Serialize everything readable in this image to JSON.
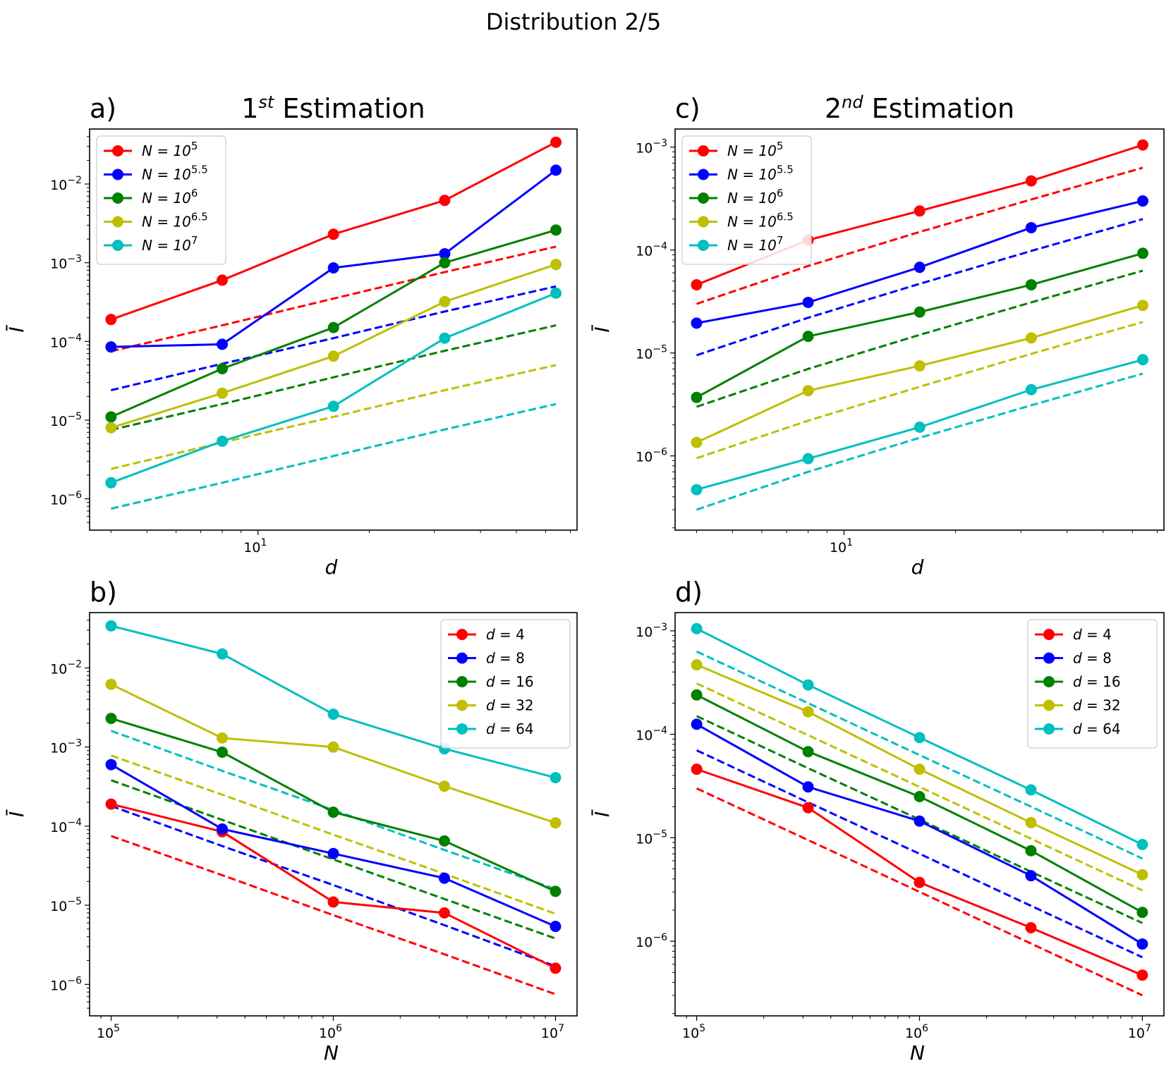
{
  "suptitle": "Distribution 2/5",
  "colors": {
    "red": "#ff0000",
    "blue": "#0000ff",
    "green": "#008000",
    "yellow": "#bfbf00",
    "cyan": "#00bfbf"
  },
  "chart_data": [
    {
      "id": "a",
      "panel_label": "a)",
      "title_prefix": "1",
      "title_sup": "st",
      "title_suffix": " Estimation",
      "type": "line",
      "xscale": "log",
      "yscale": "log",
      "xlabel": "d",
      "ylabel": "Ī",
      "xlim": [
        3.5,
        73
      ],
      "ylim": [
        4e-07,
        0.05
      ],
      "x": [
        4,
        8,
        16,
        32,
        64
      ],
      "x_ticks": [
        {
          "v": 10,
          "base": "10",
          "exp": "1"
        }
      ],
      "y_ticks": [
        {
          "v": 1e-06,
          "base": "10",
          "exp": "−6"
        },
        {
          "v": 1e-05,
          "base": "10",
          "exp": "−5"
        },
        {
          "v": 0.0001,
          "base": "10",
          "exp": "−4"
        },
        {
          "v": 0.001,
          "base": "10",
          "exp": "−3"
        },
        {
          "v": 0.01,
          "base": "10",
          "exp": "−2"
        }
      ],
      "legend_position": "upper-left",
      "series": [
        {
          "name": "N = 10^5",
          "lhs": "N = 10",
          "exp": "5",
          "color": "red",
          "values": [
            0.00019,
            0.0006,
            0.0023,
            0.0062,
            0.034
          ],
          "fit": [
            7.5e-05,
            0.00016,
            0.00035,
            0.00076,
            0.0016
          ]
        },
        {
          "name": "N = 10^5.5",
          "lhs": "N = 10",
          "exp": "5.5",
          "color": "blue",
          "values": [
            8.5e-05,
            9.2e-05,
            0.00086,
            0.0013,
            0.015
          ],
          "fit": [
            2.4e-05,
            5.2e-05,
            0.00011,
            0.00024,
            0.0005
          ]
        },
        {
          "name": "N = 10^6",
          "lhs": "N = 10",
          "exp": "6",
          "color": "green",
          "values": [
            1.1e-05,
            4.5e-05,
            0.00015,
            0.001,
            0.0026
          ],
          "fit": [
            7.5e-06,
            1.6e-05,
            3.5e-05,
            7.6e-05,
            0.00016
          ]
        },
        {
          "name": "N = 10^6.5",
          "lhs": "N = 10",
          "exp": "6.5",
          "color": "yellow",
          "values": [
            8e-06,
            2.2e-05,
            6.5e-05,
            0.00032,
            0.00095
          ],
          "fit": [
            2.4e-06,
            5.2e-06,
            1.1e-05,
            2.4e-05,
            5e-05
          ]
        },
        {
          "name": "N = 10^7",
          "lhs": "N = 10",
          "exp": "7",
          "color": "cyan",
          "values": [
            1.6e-06,
            5.4e-06,
            1.5e-05,
            0.00011,
            0.00041
          ],
          "fit": [
            7.5e-07,
            1.6e-06,
            3.5e-06,
            7.6e-06,
            1.6e-05
          ]
        }
      ]
    },
    {
      "id": "b",
      "panel_label": "b)",
      "type": "line",
      "xscale": "log",
      "yscale": "log",
      "xlabel": "N",
      "ylabel": "Ī",
      "xlim": [
        80000,
        12500000
      ],
      "ylim": [
        4e-07,
        0.05
      ],
      "x": [
        100000,
        316228,
        1000000,
        3162278,
        10000000
      ],
      "x_ticks": [
        {
          "v": 100000,
          "base": "10",
          "exp": "5"
        },
        {
          "v": 1000000,
          "base": "10",
          "exp": "6"
        },
        {
          "v": 10000000,
          "base": "10",
          "exp": "7"
        }
      ],
      "y_ticks": [
        {
          "v": 1e-06,
          "base": "10",
          "exp": "−6"
        },
        {
          "v": 1e-05,
          "base": "10",
          "exp": "−5"
        },
        {
          "v": 0.0001,
          "base": "10",
          "exp": "−4"
        },
        {
          "v": 0.001,
          "base": "10",
          "exp": "−3"
        },
        {
          "v": 0.01,
          "base": "10",
          "exp": "−2"
        }
      ],
      "legend_position": "upper-right",
      "series": [
        {
          "name": "d = 4",
          "lhs": "d",
          "rhs": " = 4",
          "color": "red",
          "values": [
            0.00019,
            8.5e-05,
            1.1e-05,
            8e-06,
            1.6e-06
          ],
          "fit": [
            7.5e-05,
            2.4e-05,
            7.5e-06,
            2.4e-06,
            7.5e-07
          ]
        },
        {
          "name": "d = 8",
          "lhs": "d",
          "rhs": " = 8",
          "color": "blue",
          "values": [
            0.0006,
            9.2e-05,
            4.5e-05,
            2.2e-05,
            5.4e-06
          ],
          "fit": [
            0.00018,
            5.6e-05,
            1.8e-05,
            5.6e-06,
            1.7e-06
          ]
        },
        {
          "name": "d = 16",
          "lhs": "d",
          "rhs": " = 16",
          "color": "green",
          "values": [
            0.0023,
            0.00086,
            0.00015,
            6.5e-05,
            1.5e-05
          ],
          "fit": [
            0.00038,
            0.00012,
            3.8e-05,
            1.2e-05,
            3.8e-06
          ]
        },
        {
          "name": "d = 32",
          "lhs": "d",
          "rhs": " = 32",
          "color": "yellow",
          "values": [
            0.0062,
            0.0013,
            0.001,
            0.00032,
            0.00011
          ],
          "fit": [
            0.00078,
            0.00025,
            7.8e-05,
            2.5e-05,
            7.8e-06
          ]
        },
        {
          "name": "d = 64",
          "lhs": "d",
          "rhs": " = 64",
          "color": "cyan",
          "values": [
            0.034,
            0.015,
            0.0026,
            0.00095,
            0.00041
          ],
          "fit": [
            0.0016,
            0.0005,
            0.00016,
            5e-05,
            1.6e-05
          ]
        }
      ]
    },
    {
      "id": "c",
      "panel_label": "c)",
      "title_prefix": "2",
      "title_sup": "nd",
      "title_suffix": " Estimation",
      "type": "line",
      "xscale": "log",
      "yscale": "log",
      "xlabel": "d",
      "ylabel": "Ī",
      "xlim": [
        3.5,
        73
      ],
      "ylim": [
        1.9e-07,
        0.0015
      ],
      "x": [
        4,
        8,
        16,
        32,
        64
      ],
      "x_ticks": [
        {
          "v": 10,
          "base": "10",
          "exp": "1"
        }
      ],
      "y_ticks": [
        {
          "v": 1e-06,
          "base": "10",
          "exp": "−6"
        },
        {
          "v": 1e-05,
          "base": "10",
          "exp": "−5"
        },
        {
          "v": 0.0001,
          "base": "10",
          "exp": "−4"
        },
        {
          "v": 0.001,
          "base": "10",
          "exp": "−3"
        }
      ],
      "legend_position": "upper-left",
      "series": [
        {
          "name": "N = 10^5",
          "lhs": "N = 10",
          "exp": "5",
          "color": "red",
          "values": [
            4.6e-05,
            0.000125,
            0.00024,
            0.00047,
            0.00105
          ],
          "fit": [
            3e-05,
            7e-05,
            0.00015,
            0.00031,
            0.00063
          ]
        },
        {
          "name": "N = 10^5.5",
          "lhs": "N = 10",
          "exp": "5.5",
          "color": "blue",
          "values": [
            1.95e-05,
            3.1e-05,
            6.8e-05,
            0.000165,
            0.0003
          ],
          "fit": [
            9.5e-06,
            2.2e-05,
            4.7e-05,
            9.8e-05,
            0.0002
          ]
        },
        {
          "name": "N = 10^6",
          "lhs": "N = 10",
          "exp": "6",
          "color": "green",
          "values": [
            3.7e-06,
            1.45e-05,
            2.5e-05,
            4.6e-05,
            9.3e-05
          ],
          "fit": [
            3e-06,
            7e-06,
            1.5e-05,
            3.1e-05,
            6.3e-05
          ]
        },
        {
          "name": "N = 10^6.5",
          "lhs": "N = 10",
          "exp": "6.5",
          "color": "yellow",
          "values": [
            1.35e-06,
            4.3e-06,
            7.5e-06,
            1.4e-05,
            2.9e-05
          ],
          "fit": [
            9.5e-07,
            2.2e-06,
            4.7e-06,
            9.8e-06,
            2e-05
          ]
        },
        {
          "name": "N = 10^7",
          "lhs": "N = 10",
          "exp": "7",
          "color": "cyan",
          "values": [
            4.7e-07,
            9.4e-07,
            1.9e-06,
            4.4e-06,
            8.6e-06
          ],
          "fit": [
            3e-07,
            7e-07,
            1.5e-06,
            3.1e-06,
            6.3e-06
          ]
        }
      ]
    },
    {
      "id": "d",
      "panel_label": "d)",
      "type": "line",
      "xscale": "log",
      "yscale": "log",
      "xlabel": "N",
      "ylabel": "Ī",
      "xlim": [
        80000,
        12500000
      ],
      "ylim": [
        1.9e-07,
        0.0015
      ],
      "x": [
        100000,
        316228,
        1000000,
        3162278,
        10000000
      ],
      "x_ticks": [
        {
          "v": 100000,
          "base": "10",
          "exp": "5"
        },
        {
          "v": 1000000,
          "base": "10",
          "exp": "6"
        },
        {
          "v": 10000000,
          "base": "10",
          "exp": "7"
        }
      ],
      "y_ticks": [
        {
          "v": 1e-06,
          "base": "10",
          "exp": "−6"
        },
        {
          "v": 1e-05,
          "base": "10",
          "exp": "−5"
        },
        {
          "v": 0.0001,
          "base": "10",
          "exp": "−4"
        },
        {
          "v": 0.001,
          "base": "10",
          "exp": "−3"
        }
      ],
      "legend_position": "upper-right",
      "series": [
        {
          "name": "d = 4",
          "lhs": "d",
          "rhs": " = 4",
          "color": "red",
          "values": [
            4.6e-05,
            1.95e-05,
            3.7e-06,
            1.35e-06,
            4.7e-07
          ],
          "fit": [
            3e-05,
            9.5e-06,
            3e-06,
            9.5e-07,
            3e-07
          ]
        },
        {
          "name": "d = 8",
          "lhs": "d",
          "rhs": " = 8",
          "color": "blue",
          "values": [
            0.000125,
            3.1e-05,
            1.45e-05,
            4.3e-06,
            9.4e-07
          ],
          "fit": [
            7e-05,
            2.2e-05,
            7e-06,
            2.2e-06,
            7e-07
          ]
        },
        {
          "name": "d = 16",
          "lhs": "d",
          "rhs": " = 16",
          "color": "green",
          "values": [
            0.00024,
            6.8e-05,
            2.5e-05,
            7.5e-06,
            1.9e-06
          ],
          "fit": [
            0.00015,
            4.7e-05,
            1.5e-05,
            4.7e-06,
            1.5e-06
          ]
        },
        {
          "name": "d = 32",
          "lhs": "d",
          "rhs": " = 32",
          "color": "yellow",
          "values": [
            0.00047,
            0.000165,
            4.6e-05,
            1.4e-05,
            4.4e-06
          ],
          "fit": [
            0.00031,
            9.8e-05,
            3.1e-05,
            9.8e-06,
            3.1e-06
          ]
        },
        {
          "name": "d = 64",
          "lhs": "d",
          "rhs": " = 64",
          "color": "cyan",
          "values": [
            0.00105,
            0.0003,
            9.3e-05,
            2.9e-05,
            8.6e-06
          ],
          "fit": [
            0.00063,
            0.0002,
            6.3e-05,
            2e-05,
            6.3e-06
          ]
        }
      ]
    }
  ]
}
